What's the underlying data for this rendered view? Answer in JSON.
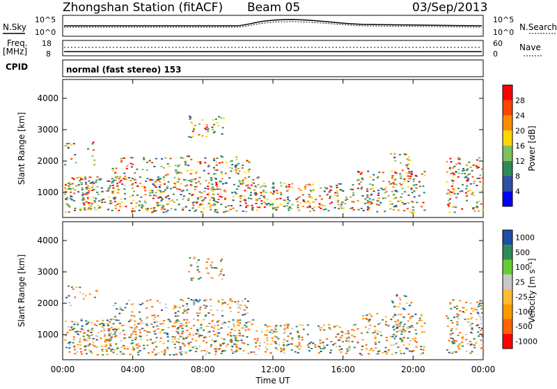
{
  "header": {
    "title": "Zhongshan Station (fitACF)",
    "beam": "Beam 05",
    "date": "03/Sep/2013"
  },
  "noise_panel": {
    "left_label": "N.Sky",
    "right_label": "N.Search",
    "left_ticks": [
      "10^5",
      "10^0"
    ],
    "right_ticks": [
      "10^5",
      "10^0"
    ]
  },
  "freq_panel": {
    "left_label_line1": "Freq.",
    "left_label_line2": "[MHz]",
    "right_label": "Nave",
    "left_ticks": [
      "18",
      "8"
    ],
    "right_ticks": [
      "60",
      "0"
    ]
  },
  "cpid_panel": {
    "label": "CPID",
    "mode_text": "normal (fast stereo) 153"
  },
  "colors": {
    "power_scale": [
      "#0000ff",
      "#2f4fa6",
      "#2e8b57",
      "#7fbf5f",
      "#ffd700",
      "#ff8c00",
      "#ff4500",
      "#ff0000"
    ],
    "velocity_scale": [
      "#ff0000",
      "#ff6600",
      "#ff9900",
      "#ffbb33",
      "#c8c8c8",
      "#66cc33",
      "#2e8b57",
      "#1f4fa6"
    ]
  },
  "chart_data": [
    {
      "type": "heatmap",
      "name": "power",
      "ylabel": "Slant Range [km]",
      "yticks": [
        "4000",
        "3000",
        "2000",
        "1000"
      ],
      "ylim": [
        200,
        4600
      ],
      "colorbar_label": "Power [dB]",
      "colorbar_ticks": [
        "28",
        "24",
        "20",
        "16",
        "12",
        "8",
        "4"
      ],
      "colorbar_range": [
        0,
        32
      ]
    },
    {
      "type": "heatmap",
      "name": "velocity",
      "ylabel": "Slant Range [km]",
      "yticks": [
        "4000",
        "3000",
        "2000",
        "1000"
      ],
      "ylim": [
        200,
        4600
      ],
      "colorbar_label": "Velocity [m s⁻¹]",
      "colorbar_ticks": [
        "1000",
        "500",
        "100",
        "25",
        "-25",
        "-100",
        "-500",
        "-1000"
      ]
    }
  ],
  "xaxis": {
    "label": "Time UT",
    "ticks": [
      "00:00",
      "04:00",
      "08:00",
      "12:00",
      "16:00",
      "20:00",
      "00:00"
    ]
  }
}
